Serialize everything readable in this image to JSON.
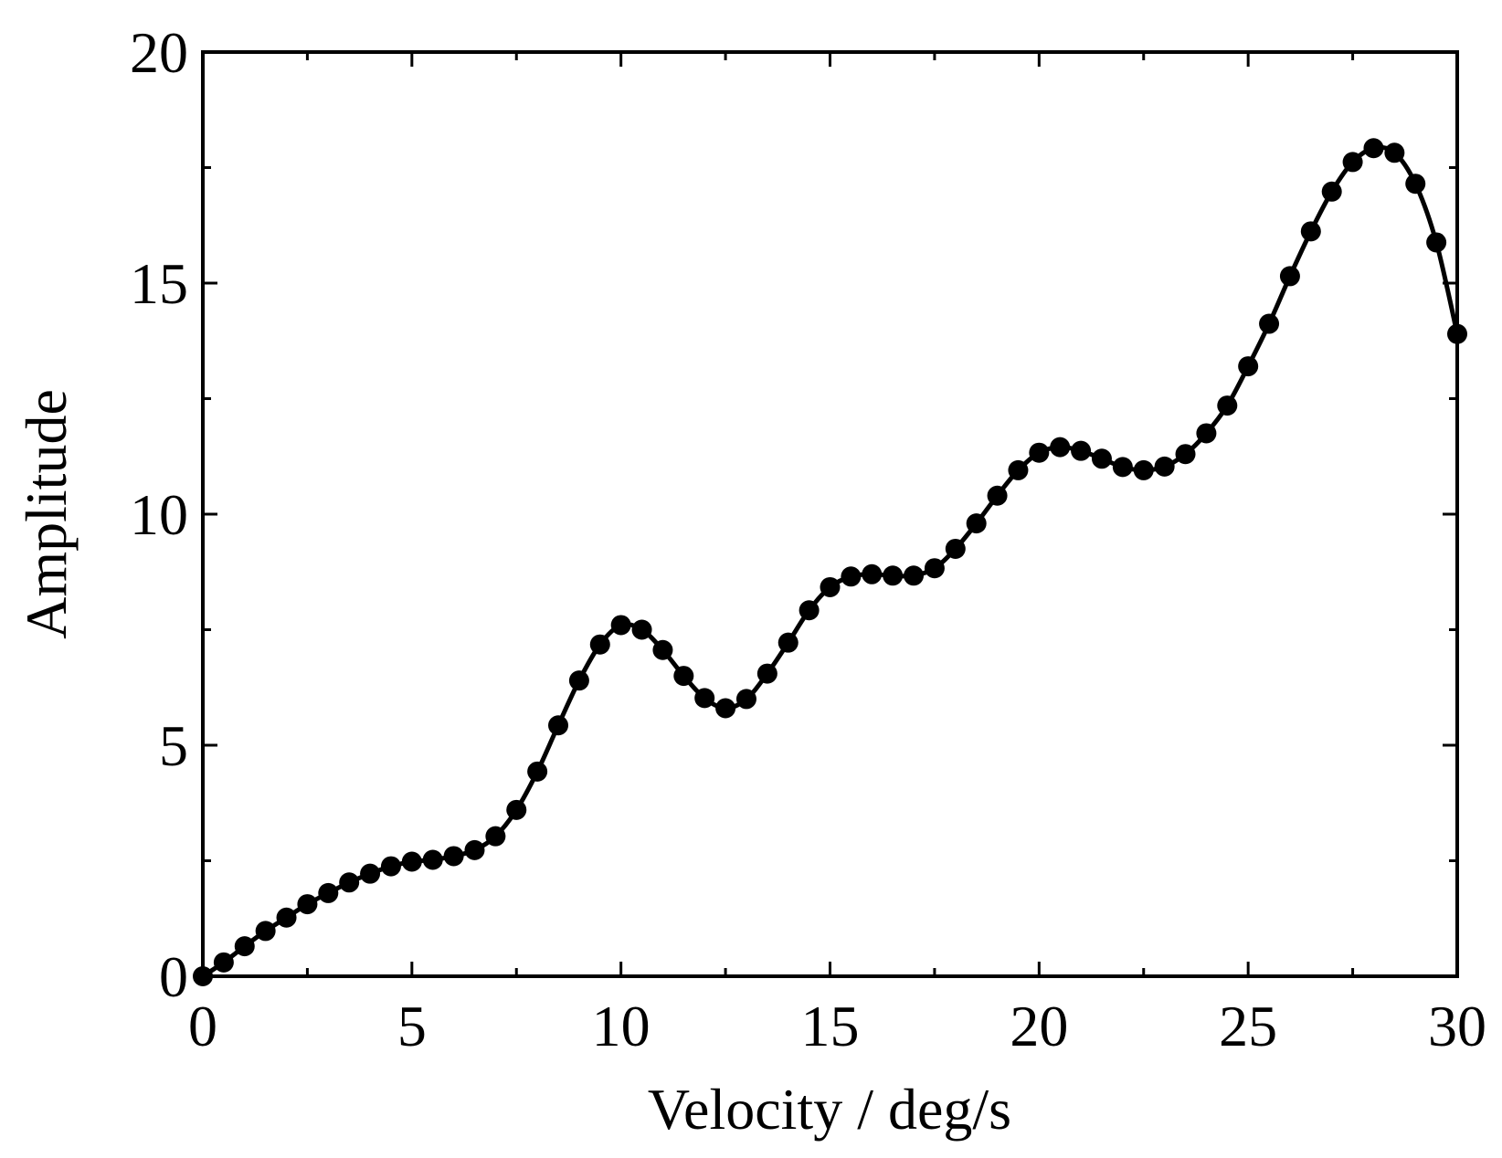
{
  "chart_data": {
    "type": "line",
    "title": "",
    "xlabel": "Velocity / deg/s",
    "ylabel": "Amplitude",
    "xlim": [
      0,
      30
    ],
    "ylim": [
      0,
      20
    ],
    "xticks": [
      0,
      5,
      10,
      15,
      20,
      25,
      30
    ],
    "yticks": [
      0,
      5,
      10,
      15,
      20
    ],
    "xtick_labels": [
      "0",
      "5",
      "10",
      "15",
      "20",
      "25",
      "30"
    ],
    "ytick_labels": [
      "0",
      "5",
      "10",
      "15",
      "20"
    ],
    "grid": false,
    "legend": "none",
    "series": [
      {
        "color": "#000000",
        "marker": "circle",
        "x": [
          0,
          0.5,
          1,
          1.5,
          2,
          2.5,
          3,
          3.5,
          4,
          4.5,
          5,
          5.5,
          6,
          6.5,
          7,
          7.5,
          8,
          8.5,
          9,
          9.5,
          10,
          10.5,
          11,
          11.5,
          12,
          12.5,
          13,
          13.5,
          14,
          14.5,
          15,
          15.5,
          16,
          16.5,
          17,
          17.5,
          18,
          18.5,
          19,
          19.5,
          20,
          20.5,
          21,
          21.5,
          22,
          22.5,
          23,
          23.5,
          24,
          24.5,
          25,
          25.5,
          26,
          26.5,
          27,
          27.5,
          28,
          28.5,
          29,
          29.5,
          30
        ],
        "y": [
          0,
          0.3,
          0.65,
          0.98,
          1.27,
          1.56,
          1.8,
          2.03,
          2.22,
          2.38,
          2.48,
          2.52,
          2.6,
          2.73,
          3.03,
          3.6,
          4.43,
          5.43,
          6.4,
          7.18,
          7.6,
          7.5,
          7.06,
          6.5,
          6.02,
          5.8,
          6.0,
          6.55,
          7.22,
          7.92,
          8.42,
          8.65,
          8.7,
          8.67,
          8.67,
          8.83,
          9.25,
          9.8,
          10.4,
          10.95,
          11.33,
          11.45,
          11.37,
          11.2,
          11.02,
          10.95,
          11.03,
          11.3,
          11.75,
          12.35,
          13.2,
          14.12,
          15.15,
          16.12,
          16.98,
          17.62,
          17.92,
          17.82,
          17.15,
          15.88,
          13.9
        ]
      }
    ]
  }
}
